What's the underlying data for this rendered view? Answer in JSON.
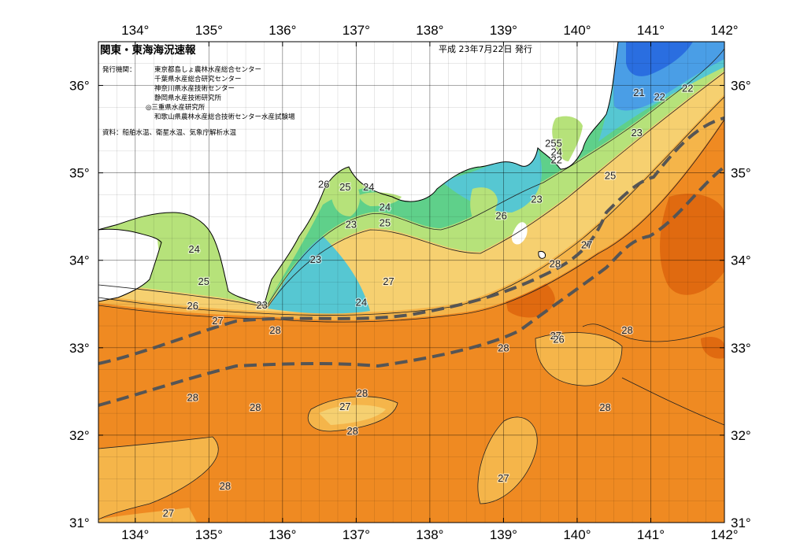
{
  "header": {
    "title": "関東・東海海況速報",
    "date": "平成 23年7月22日 発行",
    "issuer_label": "発行機関：",
    "issuers": [
      "東京都島しょ農林水産総合センター",
      "千葉県水産総合研究センター",
      "神奈川県水産技術センター",
      "静岡県水産技術研究所",
      "◎三重県水産研究所",
      "和歌山県農林水産総合技術センター水産試験場"
    ],
    "source": "資料：船舶水温、衛星水温、気象庁解析水温"
  },
  "axes": {
    "lon_labels": [
      "134°",
      "135°",
      "136°",
      "137°",
      "138°",
      "139°",
      "140°",
      "141°",
      "142°"
    ],
    "lat_labels": [
      "31°",
      "32°",
      "33°",
      "34°",
      "35°",
      "36°"
    ]
  },
  "colors": {
    "ocean_28": "#ef8a22",
    "ocean_29": "#e06a10",
    "warm_27": "#f5b54a",
    "mid_26": "#f6d070",
    "temp_25": "#b6e27a",
    "temp_24": "#5fd08a",
    "temp_23": "#56c7d2",
    "cold_22": "#4a9ee6",
    "cold_21": "#2a6ee0",
    "land": "#ffffff",
    "kuroshio": "#555555"
  },
  "contour_labels": [
    {
      "text": "21",
      "lon": 140.84,
      "lat": 35.91
    },
    {
      "text": "22",
      "lon": 141.12,
      "lat": 35.86
    },
    {
      "text": "22",
      "lon": 141.5,
      "lat": 35.96
    },
    {
      "text": "23",
      "lon": 140.81,
      "lat": 35.45
    },
    {
      "text": "25",
      "lon": 140.45,
      "lat": 34.96
    },
    {
      "text": "27",
      "lon": 140.13,
      "lat": 34.17
    },
    {
      "text": "28",
      "lon": 139.7,
      "lat": 33.95
    },
    {
      "text": "255",
      "lon": 139.68,
      "lat": 35.33
    },
    {
      "text": "24",
      "lon": 139.72,
      "lat": 35.23
    },
    {
      "text": "22",
      "lon": 139.72,
      "lat": 35.14
    },
    {
      "text": "23",
      "lon": 139.45,
      "lat": 34.69
    },
    {
      "text": "26",
      "lon": 138.97,
      "lat": 34.5
    },
    {
      "text": "26",
      "lon": 136.56,
      "lat": 34.86
    },
    {
      "text": "25",
      "lon": 136.85,
      "lat": 34.83
    },
    {
      "text": "24",
      "lon": 137.17,
      "lat": 34.83
    },
    {
      "text": "24",
      "lon": 137.39,
      "lat": 34.6
    },
    {
      "text": "25",
      "lon": 137.39,
      "lat": 34.42
    },
    {
      "text": "23",
      "lon": 136.93,
      "lat": 34.4
    },
    {
      "text": "23",
      "lon": 136.45,
      "lat": 34.0
    },
    {
      "text": "27",
      "lon": 137.44,
      "lat": 33.75
    },
    {
      "text": "24",
      "lon": 137.07,
      "lat": 33.51
    },
    {
      "text": "23",
      "lon": 135.72,
      "lat": 33.48
    },
    {
      "text": "24",
      "lon": 134.8,
      "lat": 34.12
    },
    {
      "text": "25",
      "lon": 134.93,
      "lat": 33.75
    },
    {
      "text": "26",
      "lon": 134.78,
      "lat": 33.47
    },
    {
      "text": "27",
      "lon": 135.12,
      "lat": 33.3
    },
    {
      "text": "28",
      "lon": 135.9,
      "lat": 33.19
    },
    {
      "text": "28",
      "lon": 139.0,
      "lat": 32.99
    },
    {
      "text": "27",
      "lon": 139.71,
      "lat": 33.13
    },
    {
      "text": "26",
      "lon": 139.75,
      "lat": 33.09
    },
    {
      "text": "28",
      "lon": 140.68,
      "lat": 33.19
    },
    {
      "text": "28",
      "lon": 134.78,
      "lat": 32.42
    },
    {
      "text": "28",
      "lon": 135.63,
      "lat": 32.31
    },
    {
      "text": "28",
      "lon": 137.08,
      "lat": 32.47
    },
    {
      "text": "27",
      "lon": 136.85,
      "lat": 32.32
    },
    {
      "text": "28",
      "lon": 136.95,
      "lat": 32.04
    },
    {
      "text": "28",
      "lon": 140.38,
      "lat": 32.31
    },
    {
      "text": "27",
      "lon": 139.0,
      "lat": 31.5
    },
    {
      "text": "28",
      "lon": 135.22,
      "lat": 31.41
    },
    {
      "text": "27",
      "lon": 134.45,
      "lat": 31.1
    }
  ]
}
